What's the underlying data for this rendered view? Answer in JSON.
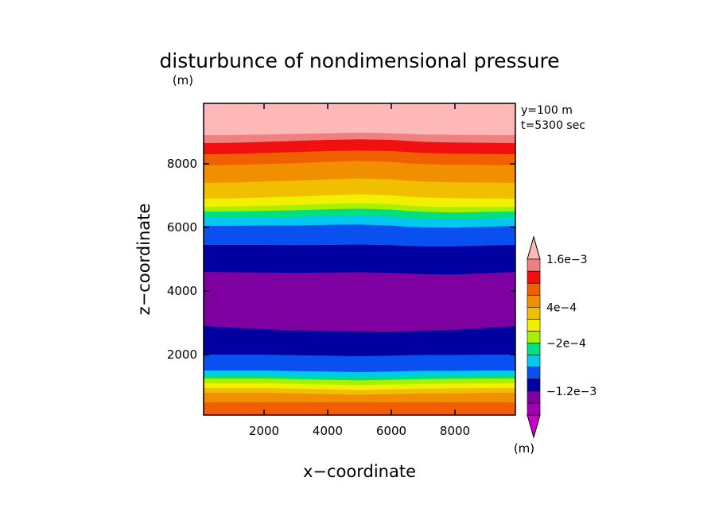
{
  "chart_data": {
    "type": "contour",
    "title": "disturbunce of nondimensional pressure",
    "xlabel": "x−coordinate",
    "ylabel": "z−coordinate",
    "x_unit": "(m)",
    "z_unit": "(m)",
    "colorbar_unit": "(m)",
    "annotations": [
      "y=100 m",
      "t=5300 sec"
    ],
    "xlim": [
      100,
      9900
    ],
    "ylim": [
      100,
      9900
    ],
    "xticks": [
      2000,
      4000,
      6000,
      8000
    ],
    "yticks": [
      2000,
      4000,
      6000,
      8000
    ],
    "x_tick_labels": [
      "2000",
      "4000",
      "6000",
      "8000"
    ],
    "y_tick_labels": [
      "2000",
      "4000",
      "6000",
      "8000"
    ],
    "colorbar": {
      "levels": [
        -0.0018,
        -0.0015,
        -0.0012,
        -0.0009,
        -0.0006,
        -0.0003,
        -0.0002,
        0,
        0.0002,
        0.0004,
        0.0006,
        0.0008,
        0.0012,
        0.0016
      ],
      "colors": [
        "#cc00cc",
        "#a000b0",
        "#7e00a0",
        "#0000a0",
        "#0a50f0",
        "#00c8f0",
        "#00e080",
        "#a8f000",
        "#f0f000",
        "#f0c000",
        "#f09000",
        "#f06000",
        "#f01010",
        "#f08080",
        "#ffb8b8"
      ],
      "labels": [
        "1.6e−3",
        "4e−4",
        "−2e−4",
        "−1.2e−3"
      ],
      "label_values": [
        0.0016,
        0.0004,
        -0.0002,
        -0.0012
      ]
    },
    "x_samples": [
      100,
      1000,
      2000,
      3000,
      4000,
      5000,
      6000,
      6500,
      7000,
      8000,
      9000,
      9900
    ],
    "bands": [
      {
        "color": "#f06000",
        "z_bottom": [
          100,
          100,
          100,
          100,
          100,
          100,
          100,
          100,
          100,
          100,
          100,
          100
        ]
      },
      {
        "color": "#f09000",
        "z_bottom": [
          500,
          500,
          500,
          500,
          500,
          500,
          500,
          500,
          500,
          500,
          500,
          500
        ]
      },
      {
        "color": "#f0c000",
        "z_bottom": [
          800,
          800,
          800,
          780,
          760,
          740,
          760,
          770,
          780,
          780,
          800,
          800
        ]
      },
      {
        "color": "#f0f000",
        "z_bottom": [
          950,
          950,
          950,
          930,
          910,
          890,
          910,
          920,
          930,
          940,
          950,
          950
        ]
      },
      {
        "color": "#a8f000",
        "z_bottom": [
          1100,
          1100,
          1100,
          1080,
          1060,
          1040,
          1060,
          1070,
          1080,
          1090,
          1100,
          1100
        ]
      },
      {
        "color": "#00e080",
        "z_bottom": [
          1250,
          1250,
          1250,
          1230,
          1210,
          1190,
          1210,
          1220,
          1230,
          1240,
          1250,
          1250
        ]
      },
      {
        "color": "#00c8f0",
        "z_bottom": [
          1350,
          1350,
          1350,
          1330,
          1320,
          1300,
          1320,
          1330,
          1340,
          1340,
          1350,
          1350
        ]
      },
      {
        "color": "#0a50f0",
        "z_bottom": [
          1500,
          1500,
          1500,
          1480,
          1470,
          1450,
          1470,
          1480,
          1490,
          1490,
          1500,
          1500
        ]
      },
      {
        "color": "#0000a0",
        "z_bottom": [
          2000,
          2000,
          2000,
          1980,
          1970,
          1950,
          1970,
          1980,
          1990,
          1990,
          2000,
          2000
        ]
      },
      {
        "color": "#7e00a0",
        "z_bottom": [
          2900,
          2850,
          2800,
          2760,
          2740,
          2730,
          2720,
          2730,
          2750,
          2780,
          2840,
          2900
        ]
      },
      {
        "color": "#0000a0",
        "z_bottom": [
          4600,
          4590,
          4580,
          4570,
          4580,
          4590,
          4570,
          4550,
          4530,
          4520,
          4560,
          4600
        ]
      },
      {
        "color": "#0a50f0",
        "z_bottom": [
          5450,
          5450,
          5450,
          5440,
          5450,
          5460,
          5440,
          5420,
          5400,
          5400,
          5430,
          5450
        ]
      },
      {
        "color": "#00c8f0",
        "z_bottom": [
          6050,
          6050,
          6060,
          6060,
          6080,
          6090,
          6060,
          6020,
          6000,
          5990,
          6020,
          6050
        ]
      },
      {
        "color": "#00e080",
        "z_bottom": [
          6300,
          6300,
          6320,
          6330,
          6360,
          6380,
          6340,
          6290,
          6260,
          6250,
          6280,
          6300
        ]
      },
      {
        "color": "#a8f000",
        "z_bottom": [
          6500,
          6500,
          6520,
          6540,
          6570,
          6590,
          6560,
          6520,
          6490,
          6470,
          6490,
          6500
        ]
      },
      {
        "color": "#f0f000",
        "z_bottom": [
          6650,
          6660,
          6680,
          6700,
          6740,
          6760,
          6730,
          6690,
          6660,
          6640,
          6650,
          6650
        ]
      },
      {
        "color": "#f0c000",
        "z_bottom": [
          6900,
          6910,
          6940,
          6970,
          7010,
          7040,
          7010,
          6970,
          6940,
          6920,
          6910,
          6900
        ]
      },
      {
        "color": "#f09000",
        "z_bottom": [
          7400,
          7410,
          7440,
          7470,
          7510,
          7540,
          7510,
          7470,
          7440,
          7420,
          7410,
          7400
        ]
      },
      {
        "color": "#f06000",
        "z_bottom": [
          7950,
          7960,
          7990,
          8020,
          8060,
          8090,
          8060,
          8020,
          7990,
          7970,
          7960,
          7950
        ]
      },
      {
        "color": "#f01010",
        "z_bottom": [
          8300,
          8310,
          8340,
          8370,
          8400,
          8420,
          8400,
          8370,
          8340,
          8320,
          8310,
          8300
        ]
      },
      {
        "color": "#f08080",
        "z_bottom": [
          8650,
          8660,
          8690,
          8720,
          8750,
          8770,
          8750,
          8720,
          8690,
          8670,
          8660,
          8650
        ]
      },
      {
        "color": "#ffb8b8",
        "z_bottom": [
          8900,
          8900,
          8920,
          8940,
          8960,
          8980,
          8960,
          8940,
          8920,
          8910,
          8900,
          8900
        ]
      }
    ]
  }
}
